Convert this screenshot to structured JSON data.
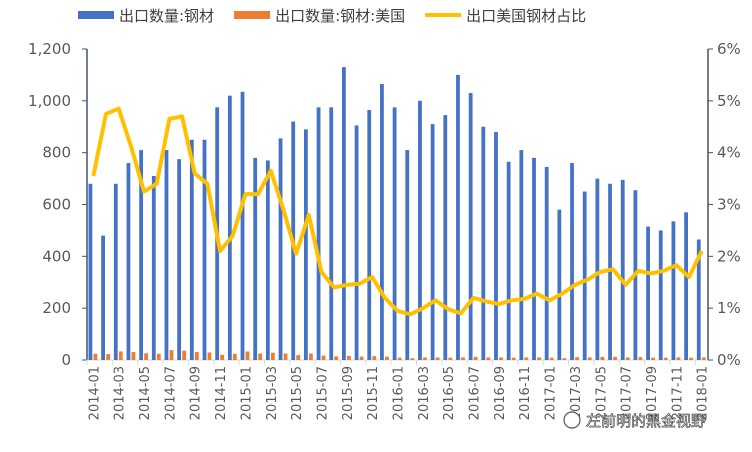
{
  "chart_data": {
    "type": "bar+line",
    "categories": [
      "2014-01",
      "2014-02",
      "2014-03",
      "2014-04",
      "2014-05",
      "2014-06",
      "2014-07",
      "2014-08",
      "2014-09",
      "2014-10",
      "2014-11",
      "2014-12",
      "2015-01",
      "2015-02",
      "2015-03",
      "2015-04",
      "2015-05",
      "2015-06",
      "2015-07",
      "2015-08",
      "2015-09",
      "2015-10",
      "2015-11",
      "2015-12",
      "2016-01",
      "2016-02",
      "2016-03",
      "2016-04",
      "2016-05",
      "2016-06",
      "2016-07",
      "2016-08",
      "2016-09",
      "2016-10",
      "2016-11",
      "2016-12",
      "2017-01",
      "2017-02",
      "2017-03",
      "2017-04",
      "2017-05",
      "2017-06",
      "2017-07",
      "2017-08",
      "2017-09",
      "2017-10",
      "2017-11",
      "2017-12",
      "2018-01"
    ],
    "series": [
      {
        "name": "出口数量:钢材",
        "type": "bar",
        "axis": "left",
        "color": "#4472C4",
        "values": [
          680,
          480,
          680,
          760,
          810,
          710,
          810,
          775,
          850,
          850,
          975,
          1020,
          1035,
          780,
          770,
          855,
          920,
          890,
          975,
          975,
          1130,
          905,
          965,
          1065,
          975,
          810,
          1000,
          910,
          945,
          1100,
          1030,
          900,
          880,
          765,
          810,
          780,
          745,
          580,
          760,
          650,
          700,
          680,
          695,
          655,
          515,
          500,
          535,
          570,
          465
        ]
      },
      {
        "name": "出口数量:钢材:美国",
        "type": "bar",
        "axis": "left",
        "color": "#ED7D31",
        "values": [
          24,
          23,
          33,
          31,
          26,
          24,
          38,
          36,
          31,
          29,
          20,
          24,
          33,
          25,
          28,
          25,
          19,
          25,
          17,
          14,
          16,
          13,
          15,
          13,
          9,
          7,
          10,
          10,
          9,
          10,
          12,
          10,
          10,
          9,
          10,
          10,
          9,
          7,
          11,
          10,
          12,
          12,
          10,
          11,
          9,
          9,
          10,
          9,
          10
        ]
      },
      {
        "name": "出口美国钢材占比",
        "type": "line",
        "axis": "right",
        "color": "#FFC000",
        "values": [
          3.55,
          4.75,
          4.85,
          4.1,
          3.25,
          3.4,
          4.65,
          4.7,
          3.6,
          3.4,
          2.1,
          2.4,
          3.2,
          3.2,
          3.65,
          2.9,
          2.05,
          2.8,
          1.7,
          1.4,
          1.45,
          1.47,
          1.6,
          1.2,
          0.95,
          0.88,
          1.0,
          1.15,
          0.98,
          0.9,
          1.2,
          1.13,
          1.08,
          1.15,
          1.18,
          1.28,
          1.15,
          1.28,
          1.45,
          1.55,
          1.7,
          1.75,
          1.45,
          1.72,
          1.67,
          1.72,
          1.83,
          1.6,
          2.1
        ]
      }
    ],
    "y_left": {
      "range": [
        0,
        1200
      ],
      "ticks": [
        "0",
        "200",
        "400",
        "600",
        "800",
        "1,000",
        "1,200"
      ]
    },
    "y_right": {
      "range": [
        0,
        6
      ],
      "ticks": [
        "0%",
        "1%",
        "2%",
        "3%",
        "4%",
        "5%",
        "6%"
      ]
    },
    "x_tick_labels": [
      "2014-01",
      "2014-03",
      "2014-05",
      "2014-07",
      "2014-09",
      "2014-11",
      "2015-01",
      "2015-03",
      "2015-05",
      "2015-07",
      "2015-09",
      "2015-11",
      "2016-01",
      "2016-03",
      "2016-05",
      "2016-07",
      "2016-09",
      "2016-11",
      "2017-01",
      "2017-03",
      "2017-05",
      "2017-07",
      "2017-09",
      "2017-11",
      "2018-01"
    ],
    "grid": false,
    "legend_position": "top"
  },
  "watermark": "左前明的黑金视野"
}
